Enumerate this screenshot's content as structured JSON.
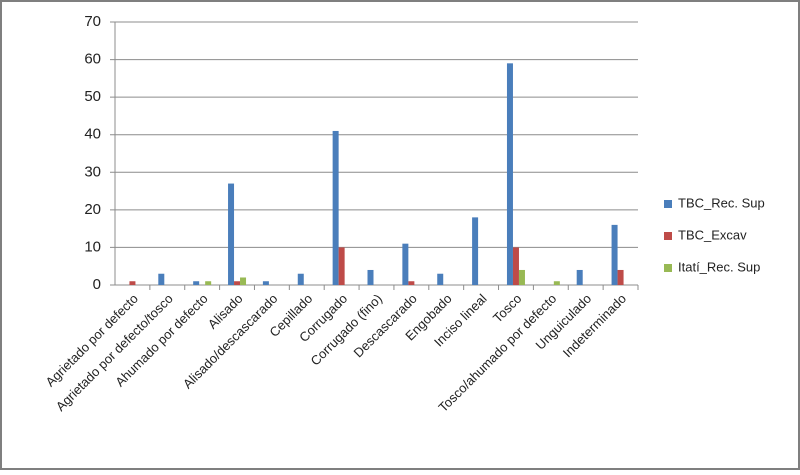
{
  "chart_data": {
    "type": "bar",
    "categories": [
      "Agrietado por defecto",
      "Agrietado por defecto/tosco",
      "Ahumado por defecto",
      "Alisado",
      "Alisado/descascarado",
      "Cepillado",
      "Corrugado",
      "Corrugado (fino)",
      "Descascarado",
      "Engobado",
      "Inciso lineal",
      "Tosco",
      "Tosco/ahumado por defecto",
      "Unguiculado",
      "Indeterminado"
    ],
    "series": [
      {
        "name": "TBC_Rec. Sup",
        "color": "#4a7ebb",
        "values": [
          0,
          3,
          1,
          27,
          1,
          3,
          41,
          4,
          11,
          3,
          18,
          59,
          0,
          4,
          16
        ]
      },
      {
        "name": "TBC_Excav",
        "color": "#be4b48",
        "values": [
          1,
          0,
          0,
          1,
          0,
          0,
          10,
          0,
          1,
          0,
          0,
          10,
          0,
          0,
          4
        ]
      },
      {
        "name": "Itatí_Rec. Sup",
        "color": "#98b954",
        "values": [
          0,
          0,
          1,
          2,
          0,
          0,
          0,
          0,
          0,
          0,
          0,
          4,
          1,
          0,
          0
        ]
      }
    ],
    "ylim": [
      0,
      70
    ],
    "yticks": [
      0,
      10,
      20,
      30,
      40,
      50,
      60,
      70
    ],
    "grid": true,
    "legend": "right"
  }
}
